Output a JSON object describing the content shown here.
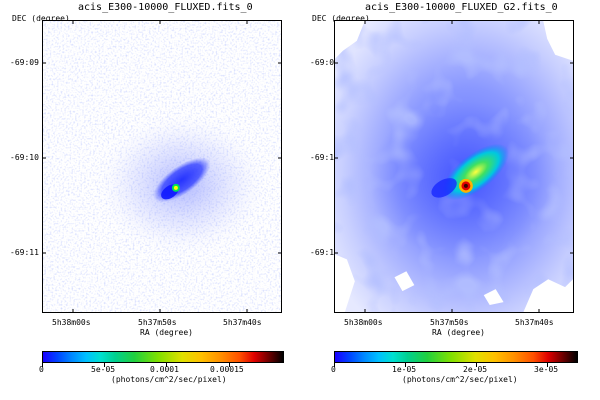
{
  "panels": {
    "left": {
      "title": "acis_E300-10000_FLUXED.fits_0",
      "dec_label": "DEC (degree)",
      "y_ticks": [
        "-69:09",
        "-69:10",
        "-69:11"
      ],
      "x_ticks": [
        "5h38m00s",
        "5h37m50s",
        "5h37m40s"
      ],
      "x_label": "RA (degree)",
      "colorbar": {
        "ticks": [
          "0",
          "5e-05",
          "0.0001",
          "0.00015"
        ],
        "unit": "(photons/cm^2/sec/pixel)"
      }
    },
    "right": {
      "title": "acis_E300-10000_FLUXED_G2.fits_0",
      "dec_label": "DEC (degree)",
      "y_ticks": [
        "-69:09",
        "-69:10",
        "-69:11"
      ],
      "x_ticks": [
        "5h38m00s",
        "5h37m50s",
        "5h37m40s"
      ],
      "x_label": "RA (degree)",
      "colorbar": {
        "ticks": [
          "0",
          "1e-05",
          "2e-05",
          "3e-05"
        ],
        "unit": "(photons/cm^2/sec/pixel)"
      }
    }
  }
}
